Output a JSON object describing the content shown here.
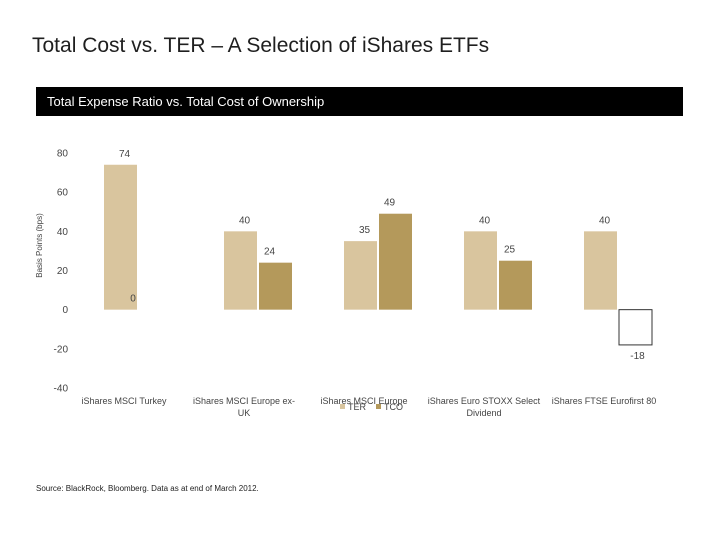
{
  "slide": {
    "title": "Total Cost vs. TER – A Selection of iShares ETFs",
    "source": "Source: BlackRock, Bloomberg. Data as at end of March 2012."
  },
  "chart_data": {
    "type": "bar",
    "title": "Total Expense Ratio vs. Total Cost of Ownership",
    "ylabel": "Basis Points (bps)",
    "xlabel": "",
    "ylim": [
      -40,
      80
    ],
    "yticks": [
      80,
      60,
      40,
      20,
      0,
      -20,
      -40
    ],
    "categories": [
      "iShares MSCI Turkey",
      "iShares MSCI Europe ex-UK",
      "iShares MSCI Europe",
      "iShares Euro STOXX Select Dividend",
      "iShares FTSE Eurofirst 80"
    ],
    "series": [
      {
        "name": "TER",
        "values": [
          74,
          40,
          35,
          40,
          40
        ],
        "color": "#d9c59e"
      },
      {
        "name": "TCO",
        "values": [
          0,
          24,
          49,
          25,
          -18
        ],
        "color": "#b4995b"
      }
    ],
    "value_labels": {
      "TER": [
        "74",
        "40",
        "35",
        "40",
        "40"
      ],
      "TCO": [
        "0",
        "24",
        "49",
        "25",
        "-18"
      ]
    },
    "legend": "bottom-center",
    "grid": false
  }
}
